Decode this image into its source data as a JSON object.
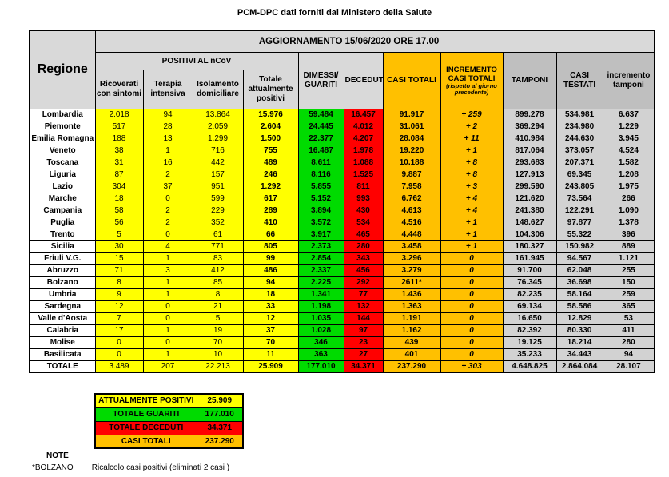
{
  "page_title": "PCM-DPC dati forniti dal Ministero della Salute",
  "colors": {
    "positive_yellow": "#FFFF00",
    "recovered_green": "#00DB00",
    "deceased_red": "#FF0000",
    "totals_orange": "#FFC000",
    "header_gray_light": "#D9D9D9",
    "header_gray_dark": "#BFBFBF",
    "data_gray": "#D2D2D2"
  },
  "table": {
    "update_title": "AGGIORNAMENTO 15/06/2020 ORE 17.00",
    "headers": {
      "regione": "Regione",
      "positivi_group": "POSITIVI AL nCoV",
      "ricoverati": "Ricoverati con sintomi",
      "terapia": "Terapia intensiva",
      "isolamento": "Isolamento domiciliare",
      "totale_positivi": "Totale attualmente positivi",
      "dimessi": "DIMESSI/ GUARITI",
      "deceduti": "DECEDUTI",
      "casi_totali": "CASI TOTALI",
      "incremento_casi": "INCREMENTO CASI  TOTALI",
      "incremento_casi_note": "(rispetto al giorno precedente)",
      "tamponi": "TAMPONI",
      "casi_testati": "CASI TESTATI",
      "incremento_tamponi": "incremento tamponi"
    },
    "rows": [
      {
        "regione": "Lombardia",
        "values": [
          "2.018",
          "94",
          "13.864",
          "15.976",
          "59.484",
          "16.457",
          "91.917",
          "+ 259",
          "899.278",
          "534.981",
          "6.637"
        ]
      },
      {
        "regione": "Piemonte",
        "values": [
          "517",
          "28",
          "2.059",
          "2.604",
          "24.445",
          "4.012",
          "31.061",
          "+ 2",
          "369.294",
          "234.980",
          "1.229"
        ]
      },
      {
        "regione": "Emilia Romagna",
        "values": [
          "188",
          "13",
          "1.299",
          "1.500",
          "22.377",
          "4.207",
          "28.084",
          "+ 11",
          "410.984",
          "244.630",
          "3.945"
        ]
      },
      {
        "regione": "Veneto",
        "values": [
          "38",
          "1",
          "716",
          "755",
          "16.487",
          "1.978",
          "19.220",
          "+ 1",
          "817.064",
          "373.057",
          "4.524"
        ]
      },
      {
        "regione": "Toscana",
        "values": [
          "31",
          "16",
          "442",
          "489",
          "8.611",
          "1.088",
          "10.188",
          "+ 8",
          "293.683",
          "207.371",
          "1.582"
        ]
      },
      {
        "regione": "Liguria",
        "values": [
          "87",
          "2",
          "157",
          "246",
          "8.116",
          "1.525",
          "9.887",
          "+ 8",
          "127.913",
          "69.345",
          "1.208"
        ]
      },
      {
        "regione": "Lazio",
        "values": [
          "304",
          "37",
          "951",
          "1.292",
          "5.855",
          "811",
          "7.958",
          "+ 3",
          "299.590",
          "243.805",
          "1.975"
        ]
      },
      {
        "regione": "Marche",
        "values": [
          "18",
          "0",
          "599",
          "617",
          "5.152",
          "993",
          "6.762",
          "+ 4",
          "121.620",
          "73.564",
          "266"
        ]
      },
      {
        "regione": "Campania",
        "values": [
          "58",
          "2",
          "229",
          "289",
          "3.894",
          "430",
          "4.613",
          "+ 4",
          "241.380",
          "122.291",
          "1.090"
        ]
      },
      {
        "regione": "Puglia",
        "values": [
          "56",
          "2",
          "352",
          "410",
          "3.572",
          "534",
          "4.516",
          "+ 1",
          "148.627",
          "97.877",
          "1.378"
        ]
      },
      {
        "regione": "Trento",
        "values": [
          "5",
          "0",
          "61",
          "66",
          "3.917",
          "465",
          "4.448",
          "+ 1",
          "104.306",
          "55.322",
          "396"
        ]
      },
      {
        "regione": "Sicilia",
        "values": [
          "30",
          "4",
          "771",
          "805",
          "2.373",
          "280",
          "3.458",
          "+ 1",
          "180.327",
          "150.982",
          "889"
        ]
      },
      {
        "regione": "Friuli V.G.",
        "values": [
          "15",
          "1",
          "83",
          "99",
          "2.854",
          "343",
          "3.296",
          "0",
          "161.945",
          "94.567",
          "1.121"
        ]
      },
      {
        "regione": "Abruzzo",
        "values": [
          "71",
          "3",
          "412",
          "486",
          "2.337",
          "456",
          "3.279",
          "0",
          "91.700",
          "62.048",
          "255"
        ]
      },
      {
        "regione": "Bolzano",
        "values": [
          "8",
          "1",
          "85",
          "94",
          "2.225",
          "292",
          "2611*",
          "0",
          "76.345",
          "36.698",
          "150"
        ]
      },
      {
        "regione": "Umbria",
        "values": [
          "9",
          "1",
          "8",
          "18",
          "1.341",
          "77",
          "1.436",
          "0",
          "82.235",
          "58.164",
          "259"
        ]
      },
      {
        "regione": "Sardegna",
        "values": [
          "12",
          "0",
          "21",
          "33",
          "1.198",
          "132",
          "1.363",
          "0",
          "69.134",
          "58.586",
          "365"
        ]
      },
      {
        "regione": "Valle d'Aosta",
        "values": [
          "7",
          "0",
          "5",
          "12",
          "1.035",
          "144",
          "1.191",
          "0",
          "16.650",
          "12.829",
          "53"
        ]
      },
      {
        "regione": "Calabria",
        "values": [
          "17",
          "1",
          "19",
          "37",
          "1.028",
          "97",
          "1.162",
          "0",
          "82.392",
          "80.330",
          "411"
        ]
      },
      {
        "regione": "Molise",
        "values": [
          "0",
          "0",
          "70",
          "70",
          "346",
          "23",
          "439",
          "0",
          "19.125",
          "18.214",
          "280"
        ]
      },
      {
        "regione": "Basilicata",
        "values": [
          "0",
          "1",
          "10",
          "11",
          "363",
          "27",
          "401",
          "0",
          "35.233",
          "34.443",
          "94"
        ]
      }
    ],
    "totale": {
      "regione": "TOTALE",
      "values": [
        "3.489",
        "207",
        "22.213",
        "25.909",
        "177.010",
        "34.371",
        "237.290",
        "+ 303",
        "4.648.825",
        "2.864.084",
        "28.107"
      ]
    }
  },
  "summary": {
    "rows": [
      {
        "label": "ATTUALMENTE POSITIVI",
        "value": "25.909",
        "color": "yellow"
      },
      {
        "label": "TOTALE GUARITI",
        "value": "177.010",
        "color": "green"
      },
      {
        "label": "TOTALE DECEDUTI",
        "value": "34.371",
        "color": "red"
      },
      {
        "label": "CASI TOTALI",
        "value": "237.290",
        "color": "orange"
      }
    ]
  },
  "notes": {
    "title": "NOTE",
    "items": [
      {
        "label": "*BOLZANO",
        "text": "Ricalcolo casi positivi (eliminati 2 casi )"
      }
    ]
  }
}
